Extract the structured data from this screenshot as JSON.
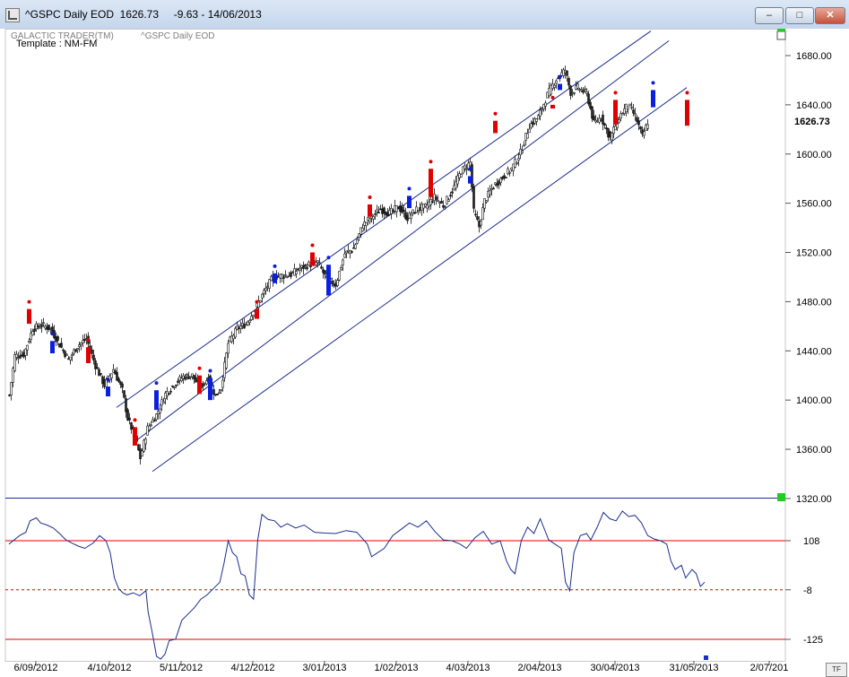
{
  "window": {
    "title": "^GSPC Daily EOD  1626.73     -9.63 - 14/06/2013",
    "min_label": "–",
    "max_label": "□",
    "close_label": "✕"
  },
  "chart_data": {
    "type": "candlestick",
    "header_left": "GALACTIC TRADER(TM)",
    "header_symbol": "^GSPC Daily EOD",
    "template_label": "Template : NM-FM",
    "last_price_label": "1626.73",
    "ylim": [
      1310,
      1700
    ],
    "y_ticks": [
      "1680.00",
      "1640.00",
      "1600.00",
      "1560.00",
      "1520.00",
      "1480.00",
      "1440.00",
      "1400.00",
      "1360.00",
      "1320.00"
    ],
    "x_ticks": [
      "6/09/2012",
      "4/10/2012",
      "5/11/2012",
      "4/12/2012",
      "3/01/2013",
      "1/02/2013",
      "4/03/2013",
      "2/04/2013",
      "30/04/2013",
      "31/05/2013",
      "2/07/201"
    ],
    "price_anchors": [
      [
        0,
        1404
      ],
      [
        3,
        1436
      ],
      [
        8,
        1437
      ],
      [
        13,
        1458
      ],
      [
        18,
        1461
      ],
      [
        23,
        1458
      ],
      [
        28,
        1445
      ],
      [
        33,
        1433
      ],
      [
        38,
        1444
      ],
      [
        43,
        1450
      ],
      [
        48,
        1428
      ],
      [
        53,
        1412
      ],
      [
        58,
        1425
      ],
      [
        63,
        1408
      ],
      [
        66,
        1385
      ],
      [
        70,
        1370
      ],
      [
        73,
        1353
      ],
      [
        77,
        1377
      ],
      [
        82,
        1388
      ],
      [
        87,
        1405
      ],
      [
        92,
        1413
      ],
      [
        97,
        1419
      ],
      [
        102,
        1420
      ],
      [
        106,
        1410
      ],
      [
        111,
        1418
      ],
      [
        115,
        1403
      ],
      [
        118,
        1410
      ],
      [
        122,
        1446
      ],
      [
        127,
        1458
      ],
      [
        132,
        1462
      ],
      [
        137,
        1474
      ],
      [
        142,
        1488
      ],
      [
        147,
        1500
      ],
      [
        152,
        1501
      ],
      [
        157,
        1502
      ],
      [
        162,
        1507
      ],
      [
        167,
        1510
      ],
      [
        172,
        1512
      ],
      [
        177,
        1498
      ],
      [
        182,
        1494
      ],
      [
        187,
        1519
      ],
      [
        192,
        1523
      ],
      [
        197,
        1542
      ],
      [
        202,
        1549
      ],
      [
        207,
        1555
      ],
      [
        212,
        1552
      ],
      [
        217,
        1557
      ],
      [
        222,
        1548
      ],
      [
        227,
        1555
      ],
      [
        232,
        1557
      ],
      [
        237,
        1565
      ],
      [
        242,
        1558
      ],
      [
        247,
        1570
      ],
      [
        252,
        1586
      ],
      [
        257,
        1593
      ],
      [
        259,
        1553
      ],
      [
        262,
        1541
      ],
      [
        265,
        1562
      ],
      [
        270,
        1574
      ],
      [
        275,
        1581
      ],
      [
        280,
        1588
      ],
      [
        285,
        1601
      ],
      [
        290,
        1623
      ],
      [
        295,
        1630
      ],
      [
        300,
        1648
      ],
      [
        305,
        1661
      ],
      [
        310,
        1668
      ],
      [
        313,
        1650
      ],
      [
        317,
        1654
      ],
      [
        322,
        1649
      ],
      [
        326,
        1625
      ],
      [
        330,
        1630
      ],
      [
        335,
        1613
      ],
      [
        340,
        1630
      ],
      [
        345,
        1640
      ],
      [
        349,
        1631
      ],
      [
        353,
        1614
      ],
      [
        356,
        1626
      ]
    ],
    "channels": [
      {
        "p1": [
          60,
          1394
        ],
        "p2": [
          358,
          1700
        ]
      },
      {
        "p1": [
          70,
          1366
        ],
        "p2": [
          368,
          1692
        ]
      },
      {
        "p1": [
          80,
          1342
        ],
        "p2": [
          378,
          1654
        ]
      }
    ],
    "red_bars": [
      {
        "i": 11,
        "open": 1474,
        "close": 1462
      },
      {
        "i": 44,
        "open": 1443,
        "close": 1430
      },
      {
        "i": 70,
        "open": 1378,
        "close": 1363
      },
      {
        "i": 106,
        "open": 1420,
        "close": 1405
      },
      {
        "i": 138,
        "open": 1474,
        "close": 1466
      },
      {
        "i": 169,
        "open": 1520,
        "close": 1509
      },
      {
        "i": 201,
        "open": 1559,
        "close": 1549
      },
      {
        "i": 235,
        "open": 1588,
        "close": 1565
      },
      {
        "i": 271,
        "open": 1627,
        "close": 1617
      },
      {
        "i": 303,
        "open": 1640,
        "close": 1637
      },
      {
        "i": 338,
        "open": 1644,
        "close": 1624
      },
      {
        "i": 378,
        "open": 1644,
        "close": 1623
      }
    ],
    "blue_bars": [
      {
        "i": 24,
        "open": 1438,
        "close": 1448
      },
      {
        "i": 55,
        "open": 1403,
        "close": 1411
      },
      {
        "i": 82,
        "open": 1392,
        "close": 1408
      },
      {
        "i": 112,
        "open": 1400,
        "close": 1418
      },
      {
        "i": 148,
        "open": 1495,
        "close": 1503
      },
      {
        "i": 178,
        "open": 1485,
        "close": 1510
      },
      {
        "i": 223,
        "open": 1556,
        "close": 1566
      },
      {
        "i": 257,
        "open": 1576,
        "close": 1582
      },
      {
        "i": 307,
        "open": 1652,
        "close": 1657
      },
      {
        "i": 359,
        "open": 1638,
        "close": 1652
      }
    ],
    "oscillator": {
      "ylim": [
        -170,
        175
      ],
      "ticks": [
        "108",
        "-8",
        "-125"
      ],
      "ref_lines": [
        108,
        -44,
        -125
      ],
      "dashed_line": -8,
      "values": [
        [
          0,
          100
        ],
        [
          2,
          108
        ],
        [
          5,
          120
        ],
        [
          8,
          128
        ],
        [
          10,
          155
        ],
        [
          13,
          162
        ],
        [
          15,
          150
        ],
        [
          18,
          145
        ],
        [
          21,
          138
        ],
        [
          24,
          125
        ],
        [
          27,
          110
        ],
        [
          30,
          102
        ],
        [
          33,
          95
        ],
        [
          36,
          90
        ],
        [
          40,
          103
        ],
        [
          43,
          120
        ],
        [
          46,
          108
        ],
        [
          48,
          80
        ],
        [
          50,
          20
        ],
        [
          52,
          -5
        ],
        [
          54,
          -15
        ],
        [
          56,
          -20
        ],
        [
          59,
          -15
        ],
        [
          62,
          -22
        ],
        [
          65,
          -10
        ],
        [
          66,
          -60
        ],
        [
          68,
          -110
        ],
        [
          70,
          -165
        ],
        [
          72,
          -175
        ],
        [
          74,
          -160
        ],
        [
          76,
          -128
        ],
        [
          79,
          -125
        ],
        [
          82,
          -80
        ],
        [
          85,
          -65
        ],
        [
          88,
          -50
        ],
        [
          91,
          -30
        ],
        [
          94,
          -20
        ],
        [
          97,
          -5
        ],
        [
          100,
          10
        ],
        [
          102,
          55
        ],
        [
          104,
          108
        ],
        [
          106,
          80
        ],
        [
          108,
          70
        ],
        [
          110,
          30
        ],
        [
          112,
          25
        ],
        [
          114,
          -20
        ],
        [
          116,
          -30
        ],
        [
          118,
          110
        ],
        [
          120,
          170
        ],
        [
          123,
          158
        ],
        [
          126,
          155
        ],
        [
          129,
          140
        ],
        [
          132,
          148
        ],
        [
          136,
          138
        ],
        [
          140,
          145
        ],
        [
          145,
          128
        ],
        [
          150,
          126
        ],
        [
          155,
          125
        ],
        [
          160,
          132
        ],
        [
          165,
          128
        ],
        [
          170,
          100
        ],
        [
          172,
          70
        ],
        [
          175,
          80
        ],
        [
          178,
          90
        ],
        [
          182,
          120
        ],
        [
          186,
          135
        ],
        [
          190,
          150
        ],
        [
          194,
          140
        ],
        [
          198,
          155
        ],
        [
          202,
          130
        ],
        [
          206,
          110
        ],
        [
          210,
          108
        ],
        [
          214,
          100
        ],
        [
          217,
          90
        ],
        [
          221,
          115
        ],
        [
          225,
          130
        ],
        [
          229,
          100
        ],
        [
          233,
          108
        ],
        [
          236,
          60
        ],
        [
          238,
          40
        ],
        [
          240,
          30
        ],
        [
          243,
          108
        ],
        [
          246,
          140
        ],
        [
          249,
          125
        ],
        [
          252,
          160
        ],
        [
          256,
          110
        ],
        [
          259,
          100
        ],
        [
          262,
          90
        ],
        [
          264,
          10
        ],
        [
          266,
          -10
        ],
        [
          268,
          80
        ],
        [
          271,
          120
        ],
        [
          274,
          125
        ],
        [
          276,
          110
        ],
        [
          279,
          140
        ],
        [
          282,
          175
        ],
        [
          285,
          160
        ],
        [
          288,
          155
        ],
        [
          291,
          178
        ],
        [
          294,
          165
        ],
        [
          297,
          168
        ],
        [
          300,
          150
        ],
        [
          303,
          120
        ],
        [
          306,
          112
        ],
        [
          309,
          108
        ],
        [
          312,
          100
        ],
        [
          314,
          60
        ],
        [
          316,
          40
        ],
        [
          319,
          50
        ],
        [
          321,
          20
        ],
        [
          324,
          40
        ],
        [
          326,
          30
        ],
        [
          328,
          0
        ],
        [
          330,
          10
        ]
      ]
    }
  }
}
